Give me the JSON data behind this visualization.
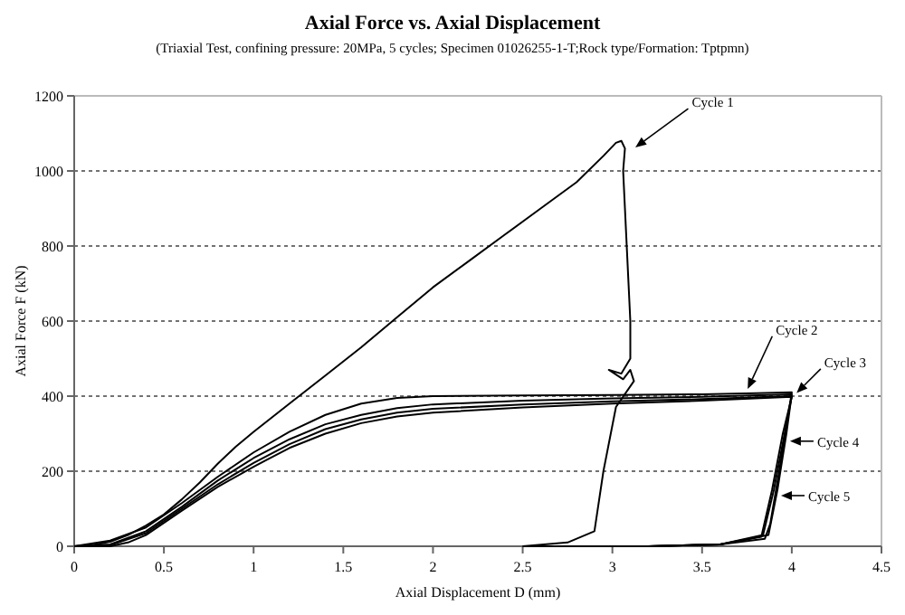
{
  "chart_data": {
    "type": "line",
    "title": "Axial Force vs. Axial Displacement",
    "subtitle": "(Triaxial Test, confining pressure: 20MPa, 5 cycles; Specimen 01026255-1-T;Rock type/Formation: Tptpmn)",
    "xlabel": "Axial Displacement D (mm)",
    "ylabel": "Axial Force F (kN)",
    "xlim": [
      0,
      4.5
    ],
    "ylim": [
      0,
      1200
    ],
    "xticks": [
      0,
      0.5,
      1,
      1.5,
      2,
      2.5,
      3,
      3.5,
      4,
      4.5
    ],
    "yticks": [
      0,
      200,
      400,
      600,
      800,
      1000,
      1200
    ],
    "grid": "y",
    "series": [
      {
        "color": "#000000",
        "x": [
          0,
          0.1,
          0.2,
          0.3,
          0.4,
          0.5,
          0.6,
          0.7,
          0.8,
          0.9,
          1.0,
          1.2,
          1.4,
          1.6,
          1.8,
          2.0,
          2.2,
          2.4,
          2.6,
          2.8,
          2.95,
          3.02,
          3.05,
          3.07,
          3.06,
          3.07,
          3.08,
          3.09,
          3.1,
          3.1,
          3.05,
          2.98,
          3.06,
          3.1,
          3.12,
          3.02,
          2.95,
          2.9,
          2.75,
          2.5
        ],
        "values": [
          0,
          3,
          12,
          30,
          55,
          85,
          125,
          170,
          220,
          265,
          305,
          380,
          455,
          530,
          610,
          690,
          760,
          830,
          900,
          970,
          1040,
          1075,
          1080,
          1060,
          1000,
          900,
          800,
          700,
          600,
          500,
          460,
          470,
          445,
          470,
          440,
          371,
          200,
          40,
          10,
          0
        ]
      },
      {
        "color": "#000000",
        "x": [
          0,
          0.2,
          0.4,
          0.6,
          0.8,
          1.0,
          1.2,
          1.4,
          1.6,
          1.8,
          2.0,
          2.5,
          3.0,
          3.5,
          3.8,
          4.0,
          3.98,
          3.93,
          3.88,
          3.85,
          3.6,
          3.2,
          2.5
        ],
        "values": [
          0,
          15,
          50,
          115,
          185,
          250,
          305,
          350,
          380,
          395,
          400,
          402,
          403,
          405,
          408,
          410,
          350,
          200,
          60,
          20,
          5,
          0,
          0
        ]
      },
      {
        "color": "#000000",
        "x": [
          0,
          0.2,
          0.4,
          0.6,
          0.8,
          1.0,
          1.2,
          1.4,
          1.6,
          1.8,
          2.0,
          2.5,
          3.0,
          3.5,
          4.0,
          3.97,
          3.92,
          3.87,
          3.6,
          3.2
        ],
        "values": [
          0,
          5,
          40,
          105,
          175,
          235,
          285,
          325,
          350,
          368,
          378,
          388,
          394,
          398,
          405,
          300,
          150,
          30,
          5,
          0
        ]
      },
      {
        "color": "#000000",
        "x": [
          0,
          0.2,
          0.4,
          0.6,
          0.8,
          1.0,
          1.2,
          1.4,
          1.6,
          1.8,
          2.0,
          2.5,
          3.0,
          3.5,
          4.0,
          3.96,
          3.9,
          3.84,
          3.6,
          3.2
        ],
        "values": [
          0,
          3,
          35,
          100,
          165,
          222,
          272,
          312,
          338,
          356,
          366,
          378,
          386,
          392,
          400,
          300,
          150,
          30,
          5,
          0
        ]
      },
      {
        "color": "#000000",
        "x": [
          0,
          0.2,
          0.3,
          0.4,
          0.6,
          0.8,
          1.0,
          1.2,
          1.4,
          1.6,
          1.8,
          2.0,
          2.5,
          3.0,
          3.5,
          4.0,
          3.95,
          3.89,
          3.83,
          3.6,
          3.2
        ],
        "values": [
          0,
          0,
          10,
          30,
          95,
          158,
          212,
          262,
          300,
          328,
          346,
          356,
          370,
          380,
          388,
          398,
          300,
          150,
          25,
          5,
          0
        ]
      }
    ],
    "annotations": [
      {
        "text": "Cycle 1",
        "x": 3.12,
        "y": 1060
      },
      {
        "text": "Cycle 2",
        "x": 3.75,
        "y": 415
      },
      {
        "text": "Cycle 3",
        "x": 4.02,
        "y": 405
      },
      {
        "text": "Cycle 4",
        "x": 3.98,
        "y": 280
      },
      {
        "text": "Cycle 5",
        "x": 3.93,
        "y": 135
      }
    ]
  }
}
